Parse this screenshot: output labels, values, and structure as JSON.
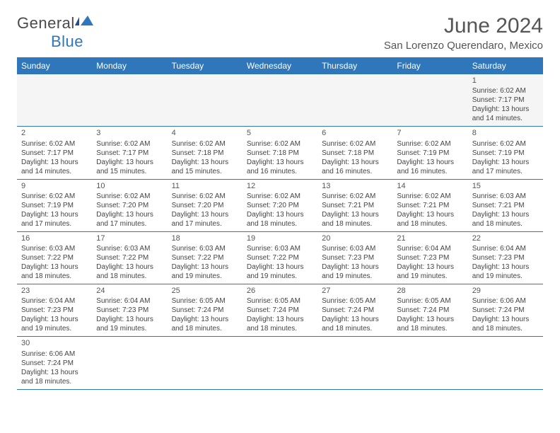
{
  "logo": {
    "text1": "General",
    "text2": "Blue"
  },
  "title": "June 2024",
  "location": "San Lorenzo Querendaro, Mexico",
  "colors": {
    "header_bg": "#2f76bb",
    "header_text": "#ffffff",
    "border": "#2f76bb",
    "body_text": "#444444",
    "title_text": "#555555",
    "empty_bg": "#f5f5f5",
    "background": "#ffffff"
  },
  "typography": {
    "title_fontsize": 30,
    "location_fontsize": 15,
    "dayheader_fontsize": 12,
    "cell_fontsize": 10,
    "daynum_fontsize": 11
  },
  "day_headers": [
    "Sunday",
    "Monday",
    "Tuesday",
    "Wednesday",
    "Thursday",
    "Friday",
    "Saturday"
  ],
  "weeks": [
    [
      null,
      null,
      null,
      null,
      null,
      null,
      {
        "n": "1",
        "sr": "6:02 AM",
        "ss": "7:17 PM",
        "dl": "13 hours and 14 minutes."
      }
    ],
    [
      {
        "n": "2",
        "sr": "6:02 AM",
        "ss": "7:17 PM",
        "dl": "13 hours and 14 minutes."
      },
      {
        "n": "3",
        "sr": "6:02 AM",
        "ss": "7:17 PM",
        "dl": "13 hours and 15 minutes."
      },
      {
        "n": "4",
        "sr": "6:02 AM",
        "ss": "7:18 PM",
        "dl": "13 hours and 15 minutes."
      },
      {
        "n": "5",
        "sr": "6:02 AM",
        "ss": "7:18 PM",
        "dl": "13 hours and 16 minutes."
      },
      {
        "n": "6",
        "sr": "6:02 AM",
        "ss": "7:18 PM",
        "dl": "13 hours and 16 minutes."
      },
      {
        "n": "7",
        "sr": "6:02 AM",
        "ss": "7:19 PM",
        "dl": "13 hours and 16 minutes."
      },
      {
        "n": "8",
        "sr": "6:02 AM",
        "ss": "7:19 PM",
        "dl": "13 hours and 17 minutes."
      }
    ],
    [
      {
        "n": "9",
        "sr": "6:02 AM",
        "ss": "7:19 PM",
        "dl": "13 hours and 17 minutes."
      },
      {
        "n": "10",
        "sr": "6:02 AM",
        "ss": "7:20 PM",
        "dl": "13 hours and 17 minutes."
      },
      {
        "n": "11",
        "sr": "6:02 AM",
        "ss": "7:20 PM",
        "dl": "13 hours and 17 minutes."
      },
      {
        "n": "12",
        "sr": "6:02 AM",
        "ss": "7:20 PM",
        "dl": "13 hours and 18 minutes."
      },
      {
        "n": "13",
        "sr": "6:02 AM",
        "ss": "7:21 PM",
        "dl": "13 hours and 18 minutes."
      },
      {
        "n": "14",
        "sr": "6:02 AM",
        "ss": "7:21 PM",
        "dl": "13 hours and 18 minutes."
      },
      {
        "n": "15",
        "sr": "6:03 AM",
        "ss": "7:21 PM",
        "dl": "13 hours and 18 minutes."
      }
    ],
    [
      {
        "n": "16",
        "sr": "6:03 AM",
        "ss": "7:22 PM",
        "dl": "13 hours and 18 minutes."
      },
      {
        "n": "17",
        "sr": "6:03 AM",
        "ss": "7:22 PM",
        "dl": "13 hours and 18 minutes."
      },
      {
        "n": "18",
        "sr": "6:03 AM",
        "ss": "7:22 PM",
        "dl": "13 hours and 19 minutes."
      },
      {
        "n": "19",
        "sr": "6:03 AM",
        "ss": "7:22 PM",
        "dl": "13 hours and 19 minutes."
      },
      {
        "n": "20",
        "sr": "6:03 AM",
        "ss": "7:23 PM",
        "dl": "13 hours and 19 minutes."
      },
      {
        "n": "21",
        "sr": "6:04 AM",
        "ss": "7:23 PM",
        "dl": "13 hours and 19 minutes."
      },
      {
        "n": "22",
        "sr": "6:04 AM",
        "ss": "7:23 PM",
        "dl": "13 hours and 19 minutes."
      }
    ],
    [
      {
        "n": "23",
        "sr": "6:04 AM",
        "ss": "7:23 PM",
        "dl": "13 hours and 19 minutes."
      },
      {
        "n": "24",
        "sr": "6:04 AM",
        "ss": "7:23 PM",
        "dl": "13 hours and 19 minutes."
      },
      {
        "n": "25",
        "sr": "6:05 AM",
        "ss": "7:24 PM",
        "dl": "13 hours and 18 minutes."
      },
      {
        "n": "26",
        "sr": "6:05 AM",
        "ss": "7:24 PM",
        "dl": "13 hours and 18 minutes."
      },
      {
        "n": "27",
        "sr": "6:05 AM",
        "ss": "7:24 PM",
        "dl": "13 hours and 18 minutes."
      },
      {
        "n": "28",
        "sr": "6:05 AM",
        "ss": "7:24 PM",
        "dl": "13 hours and 18 minutes."
      },
      {
        "n": "29",
        "sr": "6:06 AM",
        "ss": "7:24 PM",
        "dl": "13 hours and 18 minutes."
      }
    ],
    [
      {
        "n": "30",
        "sr": "6:06 AM",
        "ss": "7:24 PM",
        "dl": "13 hours and 18 minutes."
      },
      null,
      null,
      null,
      null,
      null,
      null
    ]
  ],
  "labels": {
    "sunrise": "Sunrise:",
    "sunset": "Sunset:",
    "daylight": "Daylight:"
  }
}
